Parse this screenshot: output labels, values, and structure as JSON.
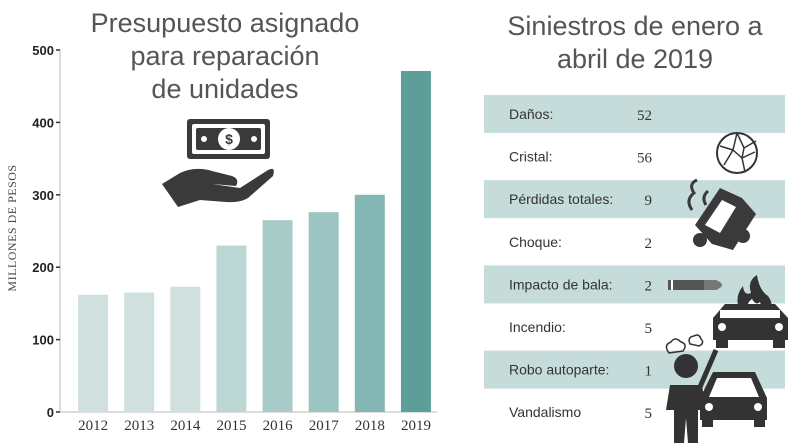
{
  "chart_data": [
    {
      "type": "bar",
      "title_lines": [
        "Presupuesto asignado",
        "para reparación",
        "de unidades"
      ],
      "ylabel": "MILLONES DE PESOS",
      "xlabel": "",
      "ylim": [
        0,
        500
      ],
      "yticks": [
        0,
        100,
        200,
        300,
        400,
        500
      ],
      "categories": [
        "2012",
        "2013",
        "2014",
        "2015",
        "2016",
        "2017",
        "2018",
        "2019"
      ],
      "values": [
        162,
        165,
        173,
        230,
        265,
        276,
        300,
        471
      ],
      "bar_colors": [
        "#cfe0df",
        "#cfe0df",
        "#cfe0df",
        "#bcd6d4",
        "#a9cbc8",
        "#9cc4c1",
        "#84b7b3",
        "#5e9e98"
      ],
      "icon": "money-hand-icon"
    },
    {
      "type": "table",
      "title_lines": [
        "Siniestros de enero a",
        "abril de 2019"
      ],
      "rows": [
        {
          "label": "Daños:",
          "value": "52",
          "shaded": true
        },
        {
          "label": "Cristal:",
          "value": "56",
          "shaded": false
        },
        {
          "label": "Pérdidas totales:",
          "value": "9",
          "shaded": true
        },
        {
          "label": "Choque:",
          "value": "2",
          "shaded": false
        },
        {
          "label": "Impacto de bala:",
          "value": "2",
          "shaded": true
        },
        {
          "label": "Incendio:",
          "value": "5",
          "shaded": false
        },
        {
          "label": "Robo autoparte:",
          "value": "1",
          "shaded": true
        },
        {
          "label": "Vandalismo",
          "value": "5",
          "shaded": false
        }
      ],
      "row_shade_color": "#c5dcdb",
      "icons": [
        "broken-glass-icon",
        "wrecked-car-icon",
        "bullet-icon",
        "burning-car-icon",
        "vandal-person-icon",
        "car-icon"
      ]
    }
  ]
}
